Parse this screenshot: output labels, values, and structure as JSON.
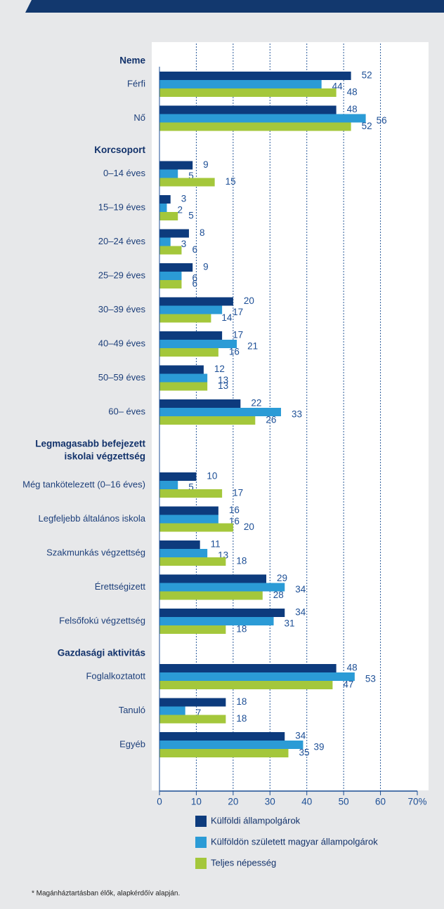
{
  "chart_data": {
    "type": "bar",
    "orientation": "horizontal",
    "groups": [
      {
        "label": [
          "Neme"
        ],
        "categories": [
          "Férfi",
          "Nő"
        ]
      },
      {
        "label": [
          "Korcsoport"
        ],
        "categories": [
          "0–14 éves",
          "15–19 éves",
          "20–24 éves",
          "25–29 éves",
          "30–39 éves",
          "40–49 éves",
          "50–59 éves",
          "60–  éves"
        ]
      },
      {
        "label": [
          "Legmagasabb befejezett",
          "iskolai végzettség"
        ],
        "categories": [
          "Még tankötelezett (0–16 éves)",
          "Legfeljebb általános iskola",
          "Szakmunkás végzettség",
          "Érettségizett",
          "Felsőfokú végzettség"
        ]
      },
      {
        "label": [
          "Gazdasági aktivitás"
        ],
        "categories": [
          "Foglalkoztatott",
          "Tanuló",
          "Egyéb"
        ]
      }
    ],
    "series": [
      {
        "name": "Külföldi állampolgárok",
        "color": "#0d3b7d",
        "values": [
          52,
          48,
          9,
          3,
          8,
          9,
          20,
          17,
          12,
          22,
          10,
          16,
          11,
          29,
          34,
          48,
          18,
          34
        ]
      },
      {
        "name": "Külföldön született magyar állampolgárok",
        "color": "#2b9bd6",
        "values": [
          44,
          56,
          5,
          2,
          3,
          6,
          17,
          21,
          13,
          33,
          5,
          16,
          13,
          34,
          31,
          53,
          7,
          39
        ]
      },
      {
        "name": "Teljes népesség",
        "color": "#a4c73b",
        "values": [
          48,
          52,
          15,
          5,
          6,
          6,
          14,
          16,
          13,
          26,
          17,
          20,
          18,
          28,
          18,
          47,
          18,
          35
        ]
      }
    ],
    "xlim": [
      0,
      70
    ],
    "xticks": [
      0,
      10,
      20,
      30,
      40,
      50,
      60,
      {
        "value": 70,
        "label": "70%"
      }
    ],
    "grid": true,
    "footnote": "* Magánháztartásban élők, alapkérdőív alapján."
  }
}
